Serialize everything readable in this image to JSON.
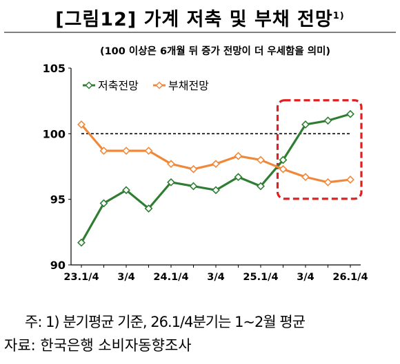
{
  "title": "[그림12] 가계 저축 및 부채 전망",
  "title_sup": "1)",
  "footnote": "주: 1)  분기평균 기준, 26.1/4분기는 1~2월 평균",
  "source": "자료:  한국은행  소비자동향조사",
  "chart_data": {
    "type": "line",
    "subtitle": "(100 이상은 6개월 뒤 증가 전망이 더 우세함을 의미)",
    "categories": [
      "23.1/4",
      "",
      "3/4",
      "",
      "24.1/4",
      "",
      "3/4",
      "",
      "25.1/4",
      "",
      "3/4",
      "",
      "26.1/4"
    ],
    "ylim": [
      90,
      105
    ],
    "yticks": [
      90,
      95,
      100,
      105
    ],
    "reference_line": 100,
    "legend_position": "top-left",
    "series": [
      {
        "name": "저축전망",
        "color": "#2e7d32",
        "values": [
          91.7,
          94.7,
          95.7,
          94.3,
          96.3,
          96.0,
          95.7,
          96.7,
          96.0,
          98.0,
          100.7,
          101.0,
          101.5
        ]
      },
      {
        "name": "부채전망",
        "color": "#f0883a",
        "values": [
          100.7,
          98.7,
          98.7,
          98.7,
          97.7,
          97.3,
          97.7,
          98.3,
          98.0,
          97.3,
          96.7,
          96.3,
          96.5
        ]
      }
    ],
    "highlight_color": "#e02020"
  }
}
